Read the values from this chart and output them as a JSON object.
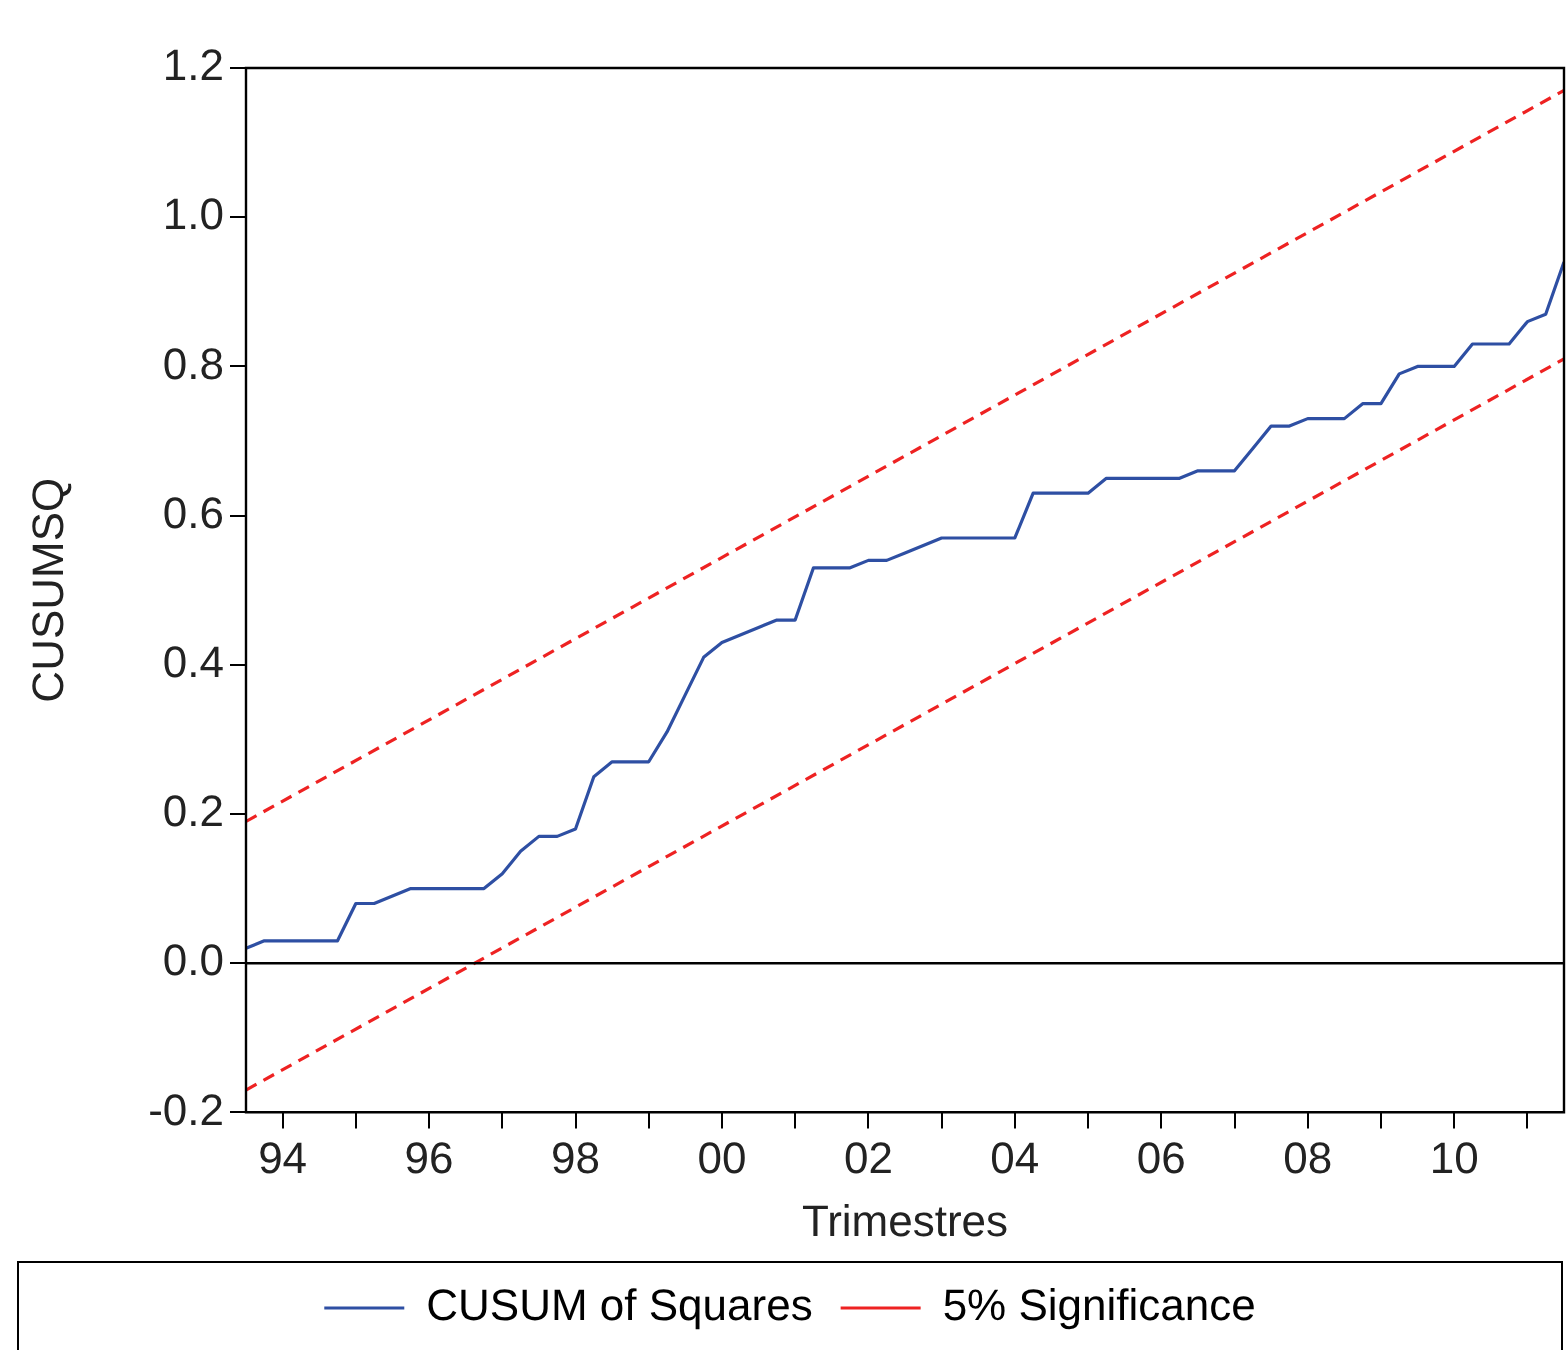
{
  "chart_data": {
    "type": "line",
    "xlabel": "Trimestres",
    "ylabel": "CUSUMSQ",
    "xlim": [
      1993.5,
      2011.5
    ],
    "xticks": [
      {
        "value": 1994,
        "label": "94"
      },
      {
        "value": 1995,
        "label": null
      },
      {
        "value": 1996,
        "label": "96"
      },
      {
        "value": 1997,
        "label": null
      },
      {
        "value": 1998,
        "label": "98"
      },
      {
        "value": 1999,
        "label": null
      },
      {
        "value": 2000,
        "label": "00"
      },
      {
        "value": 2001,
        "label": null
      },
      {
        "value": 2002,
        "label": "02"
      },
      {
        "value": 2003,
        "label": null
      },
      {
        "value": 2004,
        "label": "04"
      },
      {
        "value": 2005,
        "label": null
      },
      {
        "value": 2006,
        "label": "06"
      },
      {
        "value": 2007,
        "label": null
      },
      {
        "value": 2008,
        "label": "08"
      },
      {
        "value": 2009,
        "label": null
      },
      {
        "value": 2010,
        "label": "10"
      },
      {
        "value": 2011,
        "label": null
      }
    ],
    "ylim": [
      -0.2,
      1.2
    ],
    "yticks": [
      -0.2,
      {
        "value": 0,
        "label": "0.0"
      },
      0.2,
      0.4,
      0.6,
      0.8,
      {
        "value": 1,
        "label": "1.0"
      },
      1.2
    ],
    "grid": false,
    "legend": "bottom",
    "marker": "none",
    "ref_lines": [
      {
        "axis": "y",
        "value": 0,
        "color": "#000000"
      }
    ],
    "series": [
      {
        "name": "CUSUM of Squares",
        "color": "#2e4fa3",
        "line_style": "solid",
        "x": [
          1993.5,
          1993.75,
          1994,
          1994.25,
          1994.5,
          1994.75,
          1995,
          1995.25,
          1995.5,
          1995.75,
          1996,
          1996.25,
          1996.5,
          1996.75,
          1997,
          1997.25,
          1997.5,
          1997.75,
          1998,
          1998.25,
          1998.5,
          1998.75,
          1999,
          1999.25,
          1999.5,
          1999.75,
          2000,
          2000.25,
          2000.5,
          2000.75,
          2001,
          2001.25,
          2001.5,
          2001.75,
          2002,
          2002.25,
          2002.5,
          2002.75,
          2003,
          2003.25,
          2003.5,
          2003.75,
          2004,
          2004.25,
          2004.5,
          2004.75,
          2005,
          2005.25,
          2005.5,
          2005.75,
          2006,
          2006.25,
          2006.5,
          2006.75,
          2007,
          2007.25,
          2007.5,
          2007.75,
          2008,
          2008.25,
          2008.5,
          2008.75,
          2009,
          2009.25,
          2009.5,
          2009.75,
          2010,
          2010.25,
          2010.5,
          2010.75,
          2011,
          2011.25,
          2011.5
        ],
        "values": [
          0.02,
          0.03,
          0.03,
          0.03,
          0.03,
          0.03,
          0.08,
          0.08,
          0.09,
          0.1,
          0.1,
          0.1,
          0.1,
          0.1,
          0.12,
          0.15,
          0.17,
          0.17,
          0.18,
          0.25,
          0.27,
          0.27,
          0.27,
          0.31,
          0.36,
          0.41,
          0.43,
          0.44,
          0.45,
          0.46,
          0.46,
          0.53,
          0.53,
          0.53,
          0.54,
          0.54,
          0.55,
          0.56,
          0.57,
          0.57,
          0.57,
          0.57,
          0.57,
          0.63,
          0.63,
          0.63,
          0.63,
          0.65,
          0.65,
          0.65,
          0.65,
          0.65,
          0.66,
          0.66,
          0.66,
          0.69,
          0.72,
          0.72,
          0.73,
          0.73,
          0.73,
          0.75,
          0.75,
          0.79,
          0.8,
          0.8,
          0.8,
          0.83,
          0.83,
          0.83,
          0.86,
          0.87,
          0.94
        ]
      },
      {
        "name": "5% Significance",
        "color": "#ee2222",
        "line_style": "dashed",
        "x": [
          1993.5,
          2011.5
        ],
        "values": [
          0.19,
          1.17
        ]
      },
      {
        "color": "#ee2222",
        "line_style": "dashed",
        "x": [
          1993.5,
          2011.5
        ],
        "values": [
          -0.17,
          0.81
        ]
      }
    ]
  }
}
